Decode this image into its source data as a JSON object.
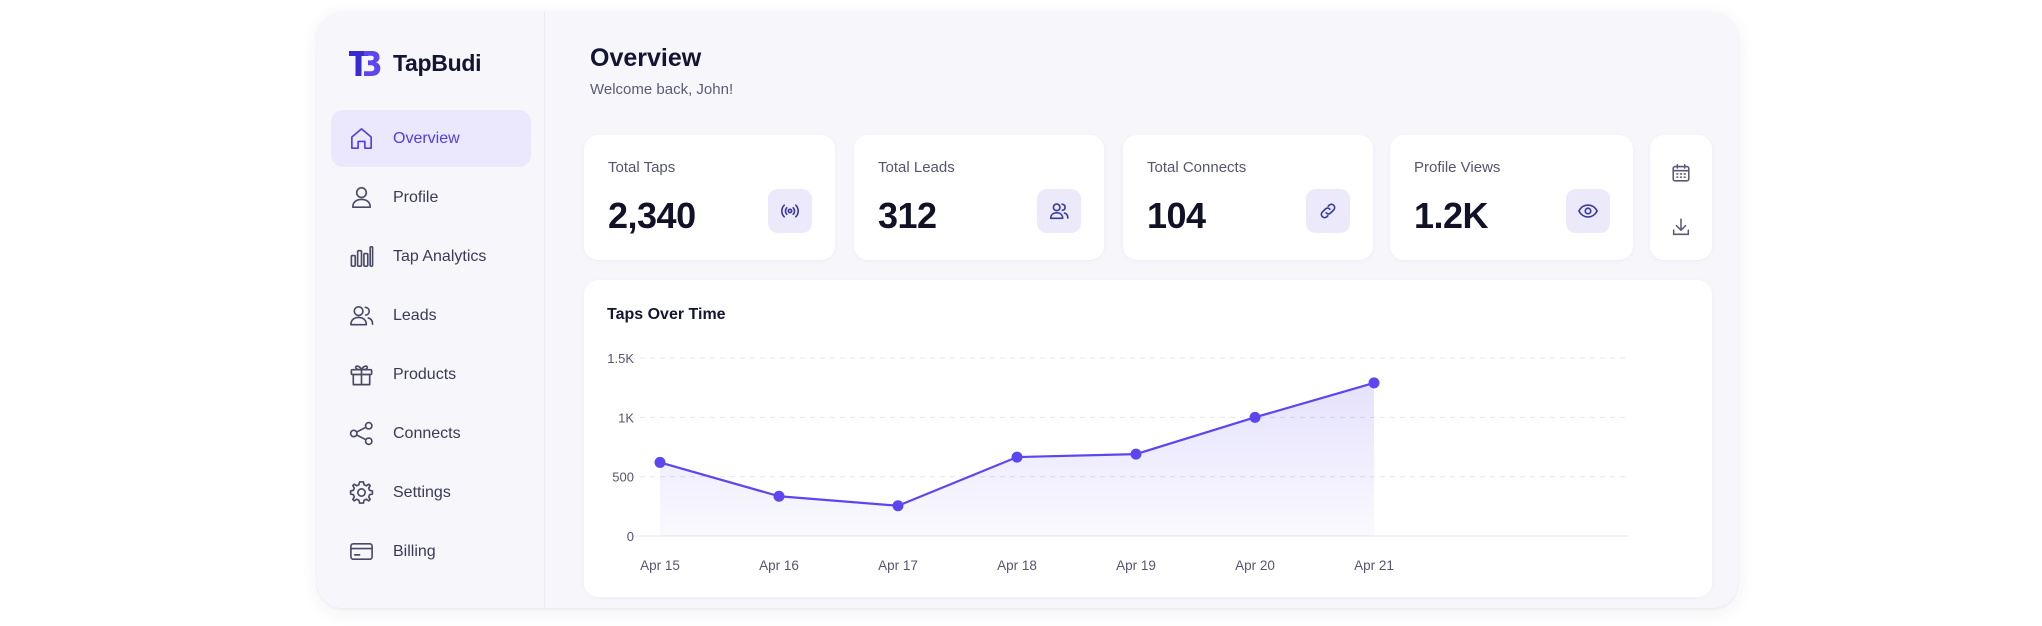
{
  "brand": {
    "name": "TapBudi",
    "accent": "#5b46f0"
  },
  "sidebar": {
    "items": [
      {
        "label": "Overview",
        "icon": "home-icon",
        "active": true
      },
      {
        "label": "Profile",
        "icon": "user-icon"
      },
      {
        "label": "Tap Analytics",
        "icon": "bar-chart-icon"
      },
      {
        "label": "Leads",
        "icon": "users-icon"
      },
      {
        "label": "Products",
        "icon": "gift-icon"
      },
      {
        "label": "Connects",
        "icon": "share-icon"
      },
      {
        "label": "Settings",
        "icon": "gear-icon"
      },
      {
        "label": "Billing",
        "icon": "credit-card-icon"
      }
    ]
  },
  "header": {
    "title": "Overview",
    "subtitle": "Welcome back, John!"
  },
  "stats": [
    {
      "label": "Total Taps",
      "value": "2,340",
      "icon": "broadcast-icon"
    },
    {
      "label": "Total Leads",
      "value": "312",
      "icon": "users-icon"
    },
    {
      "label": "Total Connects",
      "value": "104",
      "icon": "link-icon"
    },
    {
      "label": "Profile Views",
      "value": "1.2K",
      "icon": "eye-icon"
    }
  ],
  "tools": {
    "icons": [
      "calendar-icon",
      "download-icon"
    ]
  },
  "chart": {
    "title": "Taps Over Time"
  },
  "chart_data": {
    "type": "line",
    "title": "Taps Over Time",
    "x": [
      "Apr 15",
      "Apr 16",
      "Apr 17",
      "Apr 18",
      "Apr 19",
      "Apr 20",
      "Apr 21"
    ],
    "series": [
      {
        "values": [
          620,
          335,
          255,
          665,
          690,
          1000,
          1290
        ]
      }
    ],
    "yticks": [
      "0",
      "500",
      "1K",
      "1.5K"
    ],
    "ytick_values": [
      0,
      500,
      1000,
      1500
    ],
    "ylim": [
      0,
      1500
    ],
    "grid": true,
    "area_fill": true,
    "line_color": "#5b46f0"
  }
}
